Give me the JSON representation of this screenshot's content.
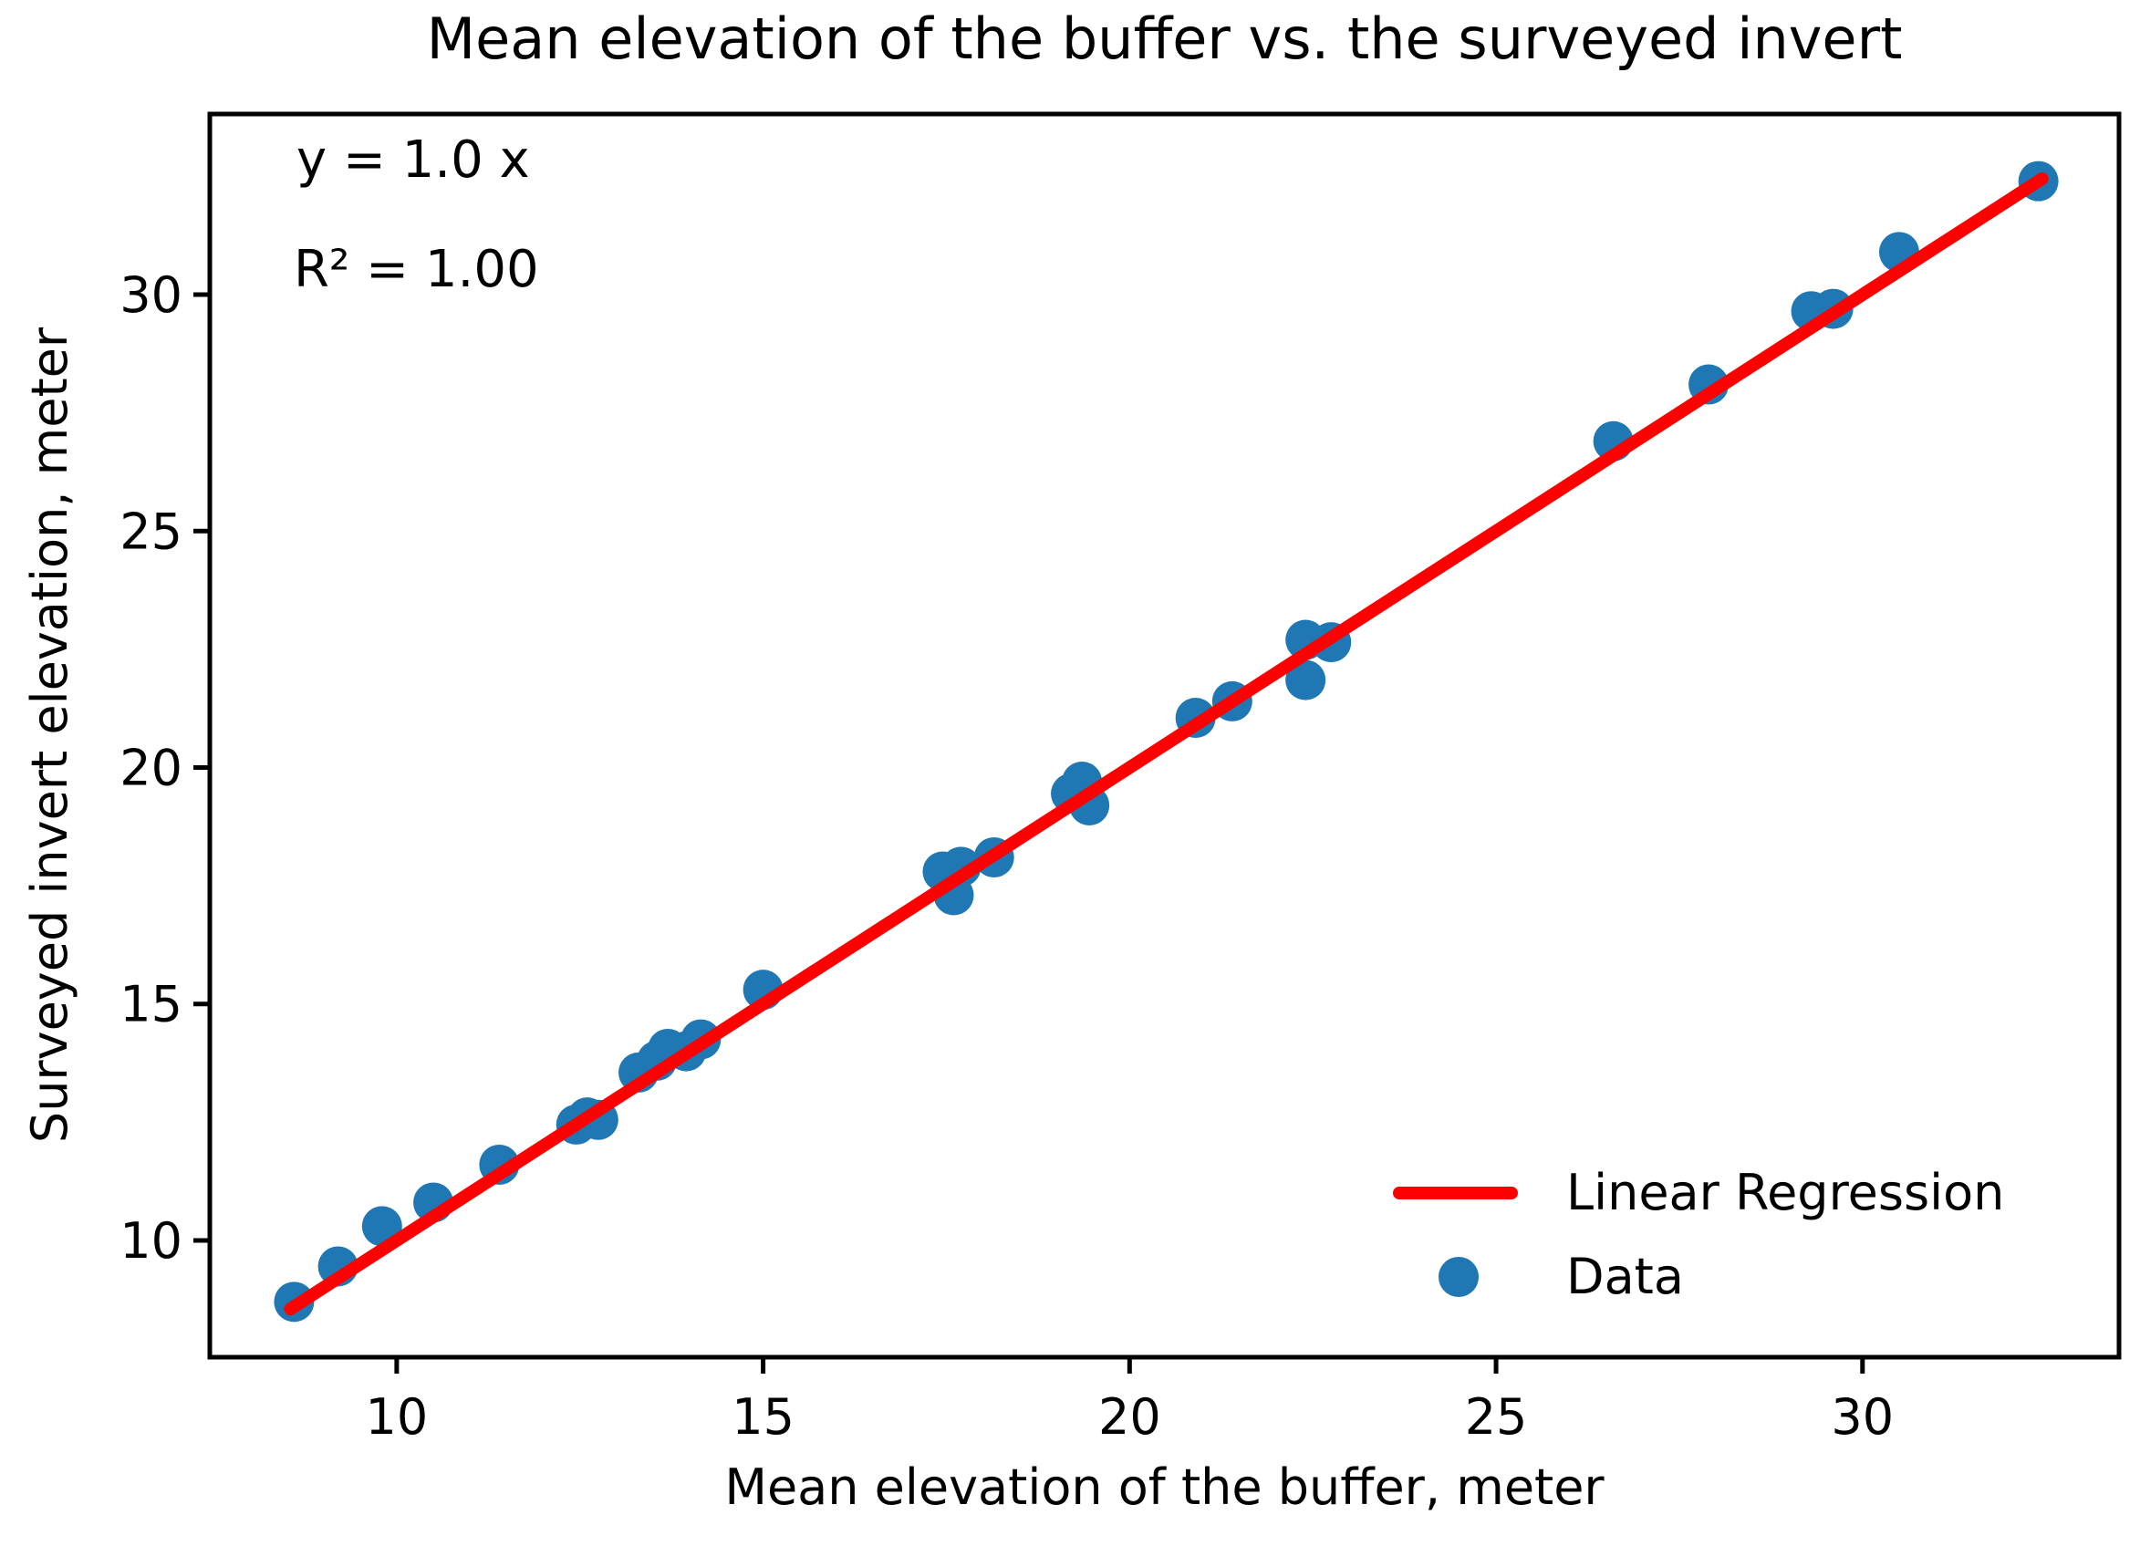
{
  "chart_data": {
    "type": "scatter",
    "title": "Mean elevation of the buffer vs. the surveyed invert",
    "xlabel": "Mean elevation of the buffer, meter",
    "ylabel": "Surveyed invert elevation, meter",
    "annotations": {
      "equation": "y = 1.0 x",
      "r_squared": "R² = 1.00"
    },
    "xlim": [
      7.45,
      33.5
    ],
    "ylim": [
      7.53,
      33.82
    ],
    "x_ticks": [
      10,
      15,
      20,
      25,
      30
    ],
    "y_ticks": [
      10,
      15,
      20,
      25,
      30
    ],
    "grid": false,
    "axis_color": "#000000",
    "background_color": "#ffffff",
    "legend": {
      "position": "lower right",
      "frame": false,
      "items": [
        {
          "label": "Linear Regression",
          "type": "line",
          "color": "#ff0000"
        },
        {
          "label": "Data",
          "type": "marker",
          "color": "#1f77b4"
        }
      ]
    },
    "series": [
      {
        "name": "Data",
        "type": "scatter",
        "color": "#1f77b4",
        "points": [
          [
            8.6,
            8.7
          ],
          [
            9.2,
            9.45
          ],
          [
            9.8,
            10.3
          ],
          [
            10.5,
            10.8
          ],
          [
            11.4,
            11.6
          ],
          [
            12.45,
            12.45
          ],
          [
            12.6,
            12.6
          ],
          [
            12.75,
            12.55
          ],
          [
            13.3,
            13.55
          ],
          [
            13.55,
            13.8
          ],
          [
            13.7,
            14.05
          ],
          [
            13.95,
            14.0
          ],
          [
            14.15,
            14.25
          ],
          [
            15.0,
            15.3
          ],
          [
            17.45,
            17.8
          ],
          [
            17.6,
            17.3
          ],
          [
            17.7,
            17.9
          ],
          [
            18.15,
            18.1
          ],
          [
            19.2,
            19.45
          ],
          [
            19.35,
            19.7
          ],
          [
            19.45,
            19.2
          ],
          [
            20.9,
            21.05
          ],
          [
            21.4,
            21.4
          ],
          [
            22.4,
            21.85
          ],
          [
            22.4,
            22.7
          ],
          [
            22.75,
            22.65
          ],
          [
            26.6,
            26.9
          ],
          [
            27.9,
            28.1
          ],
          [
            29.3,
            29.65
          ],
          [
            29.6,
            29.7
          ],
          [
            30.5,
            30.9
          ],
          [
            32.4,
            32.4
          ]
        ]
      },
      {
        "name": "Linear Regression",
        "type": "line",
        "color": "#ff0000",
        "slope": 1.0,
        "intercept": 0.0,
        "x_range": [
          8.55,
          32.45
        ]
      }
    ]
  }
}
